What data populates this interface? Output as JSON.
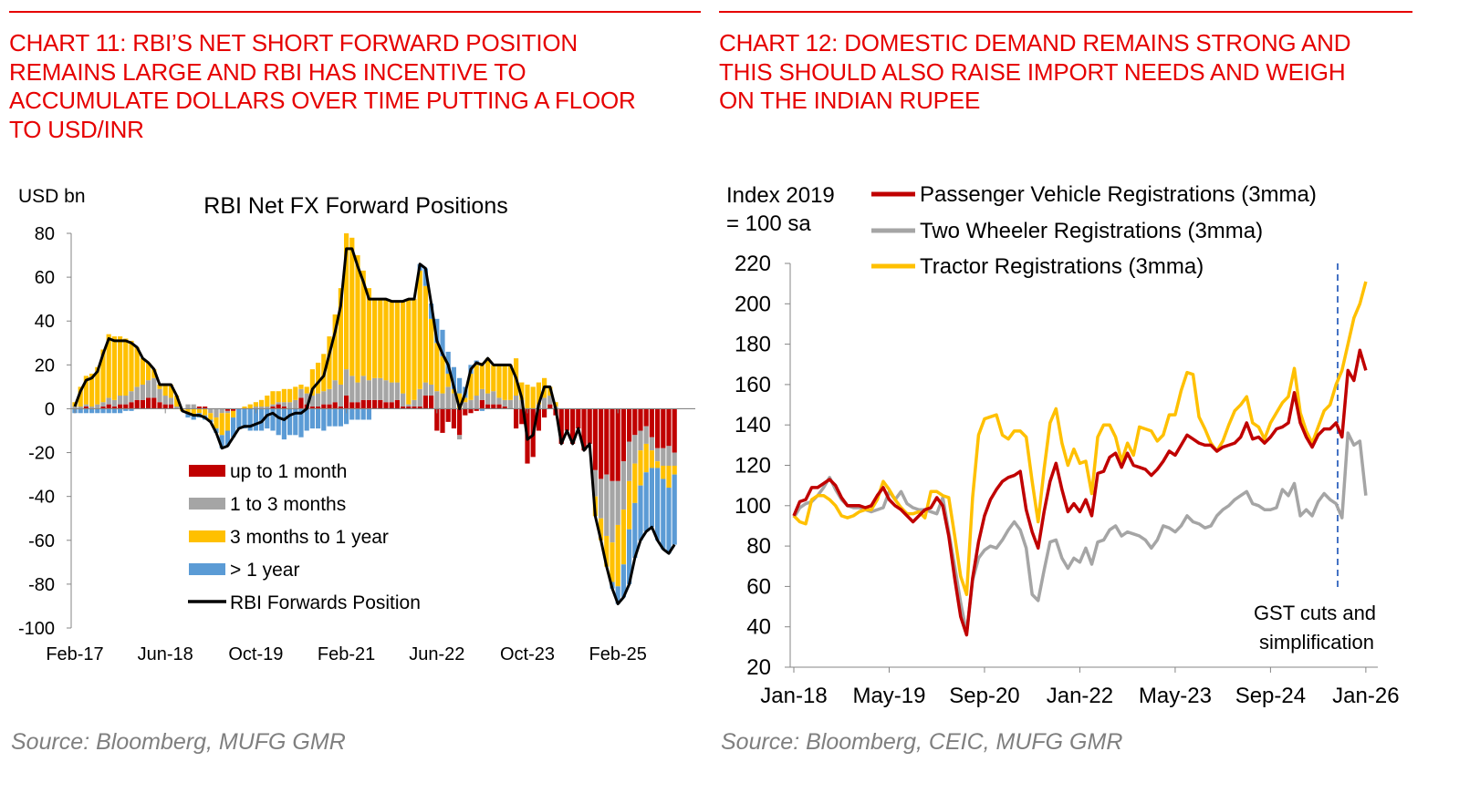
{
  "left": {
    "heading_lines": [
      "CHART 11: RBI’S NET SHORT FORWARD POSITION",
      "REMAINS LARGE AND RBI HAS INCENTIVE TO",
      "ACCUMULATE DOLLARS OVER TIME PUTTING A FLOOR",
      "TO USD/INR"
    ],
    "source": "Source: Bloomberg, MUFG GMR"
  },
  "right": {
    "heading_lines": [
      "CHART 12: DOMESTIC DEMAND REMAINS STRONG AND",
      "THIS SHOULD ALSO RAISE IMPORT NEEDS AND WEIGH",
      "ON THE INDIAN RUPEE"
    ],
    "source": "Source: Bloomberg, CEIC, MUFG GMR"
  },
  "chart_data": [
    {
      "type": "bar",
      "stacked": true,
      "title": "RBI Net FX Forward Positions",
      "ylabel": "USD bn",
      "ylim": [
        -100,
        80
      ],
      "yticks": [
        "80",
        "60",
        "40",
        "20",
        "0",
        "-20",
        "-40",
        "-60",
        "-80",
        "-100"
      ],
      "xtick_labels": [
        "Feb-17",
        "Jun-18",
        "Oct-19",
        "Feb-21",
        "Jun-22",
        "Oct-23",
        "Feb-25"
      ],
      "frequency": "monthly",
      "legend_position": "bottom-center",
      "grid": false,
      "series": [
        {
          "name": "up to 1 month",
          "color": "#c00000",
          "values": [
            0,
            0,
            1,
            0,
            0,
            1,
            2,
            1,
            2,
            2,
            3,
            4,
            4,
            5,
            5,
            3,
            2,
            2,
            0,
            0,
            0,
            0,
            1,
            1,
            0,
            0,
            0,
            -1,
            -1,
            0,
            0,
            0,
            0,
            0,
            0,
            1,
            2,
            1,
            0,
            0,
            5,
            2,
            1,
            1,
            2,
            2,
            3,
            1,
            6,
            3,
            3,
            4,
            4,
            4,
            4,
            3,
            3,
            4,
            1,
            1,
            1,
            1,
            6,
            6,
            -10,
            -11,
            -6,
            -9,
            -12,
            -3,
            -2,
            -1,
            4,
            2,
            2,
            2,
            1,
            0,
            -9,
            -7,
            -25,
            -22,
            -10,
            -4,
            2,
            -3,
            -16,
            -10,
            -16,
            -9,
            -19,
            -16,
            -28,
            -32,
            -30,
            -33,
            -33,
            -24,
            -15,
            -12,
            -10,
            -8,
            -13,
            -18,
            -18,
            -17,
            -20
          ]
        },
        {
          "name": "1 to 3 months",
          "color": "#a5a5a5",
          "values": [
            1,
            1,
            1,
            1,
            2,
            2,
            3,
            3,
            4,
            4,
            5,
            6,
            7,
            8,
            9,
            6,
            4,
            3,
            1,
            0,
            2,
            2,
            0,
            0,
            -2,
            -4,
            -2,
            -1,
            0,
            0,
            0,
            0,
            1,
            1,
            1,
            1,
            1,
            2,
            3,
            4,
            4,
            5,
            5,
            6,
            6,
            7,
            10,
            10,
            12,
            12,
            9,
            11,
            9,
            10,
            10,
            10,
            9,
            8,
            6,
            1,
            3,
            8,
            6,
            5,
            8,
            7,
            10,
            7,
            -2,
            3,
            4,
            6,
            5,
            5,
            6,
            3,
            3,
            4,
            6,
            4,
            0,
            0,
            2,
            5,
            4,
            1,
            0,
            0,
            0,
            0,
            0,
            0,
            -12,
            -18,
            -28,
            -28,
            -20,
            -22,
            -18,
            -13,
            -9,
            -8,
            -6,
            -6,
            -8,
            -9,
            -6
          ]
        },
        {
          "name": "3 months to 1 year",
          "color": "#ffc000",
          "values": [
            2,
            9,
            13,
            15,
            17,
            24,
            29,
            29,
            27,
            26,
            23,
            18,
            12,
            8,
            4,
            2,
            5,
            6,
            5,
            -1,
            -2,
            -3,
            -2,
            -3,
            -3,
            -5,
            -10,
            -8,
            -3,
            0,
            1,
            2,
            2,
            3,
            5,
            6,
            5,
            6,
            6,
            6,
            2,
            3,
            12,
            14,
            17,
            24,
            30,
            44,
            62,
            63,
            58,
            48,
            42,
            36,
            36,
            37,
            37,
            37,
            42,
            48,
            46,
            54,
            44,
            30,
            22,
            17,
            6,
            2,
            7,
            2,
            12,
            14,
            12,
            16,
            12,
            15,
            16,
            16,
            17,
            8,
            11,
            10,
            10,
            9,
            4,
            2,
            0,
            0,
            0,
            0,
            0,
            0,
            -9,
            -10,
            -14,
            -18,
            -28,
            -25,
            -22,
            -18,
            -16,
            -13,
            -8,
            -3,
            -6,
            -10,
            -4
          ]
        },
        {
          "name": "> 1 year",
          "color": "#5b9bd5",
          "values": [
            -2,
            -2,
            -2,
            -2,
            -2,
            -2,
            -2,
            -2,
            -2,
            -1,
            -1,
            0,
            0,
            0,
            0,
            0,
            0,
            0,
            0,
            0,
            -2,
            -2,
            -2,
            -2,
            -1,
            -2,
            -6,
            -7,
            -9,
            -9,
            -9,
            -10,
            -10,
            -10,
            -9,
            -10,
            -12,
            -14,
            -12,
            -12,
            -13,
            -10,
            -9,
            -9,
            -10,
            -8,
            -8,
            -8,
            -7,
            -5,
            -5,
            -5,
            -5,
            0,
            0,
            0,
            0,
            0,
            0,
            0,
            0,
            3,
            8,
            7,
            11,
            12,
            10,
            10,
            7,
            5,
            4,
            2,
            -1,
            0,
            0,
            0,
            0,
            0,
            0,
            0,
            0,
            0,
            0,
            0,
            0,
            0,
            0,
            0,
            0,
            0,
            0,
            0,
            0,
            0,
            0,
            -3,
            -8,
            -15,
            -25,
            -25,
            -25,
            -27,
            -27,
            -33,
            -32,
            -30,
            -32
          ]
        }
      ],
      "line": {
        "name": "RBI Forwards Position",
        "color": "#000000",
        "values": [
          1,
          8,
          13,
          14,
          17,
          25,
          32,
          31,
          31,
          31,
          30,
          28,
          23,
          21,
          18,
          11,
          11,
          11,
          6,
          -1,
          -2,
          -3,
          -3,
          -4,
          -6,
          -11,
          -18,
          -17,
          -13,
          -9,
          -8,
          -8,
          -7,
          -6,
          -3,
          -2,
          -4,
          -5,
          -3,
          -2,
          -2,
          0,
          9,
          12,
          15,
          25,
          35,
          47,
          73,
          73,
          65,
          58,
          50,
          50,
          50,
          50,
          49,
          49,
          49,
          50,
          50,
          66,
          64,
          48,
          31,
          25,
          20,
          10,
          0,
          7,
          18,
          21,
          20,
          23,
          20,
          20,
          20,
          20,
          14,
          5,
          -14,
          -12,
          2,
          10,
          10,
          0,
          -16,
          -10,
          -16,
          -9,
          -19,
          -16,
          -49,
          -60,
          -72,
          -82,
          -89,
          -86,
          -80,
          -68,
          -60,
          -56,
          -54,
          -60,
          -64,
          -66,
          -62
        ]
      }
    },
    {
      "type": "line",
      "ylabel_lines": [
        "Index 2019",
        "= 100 sa"
      ],
      "ylim": [
        20,
        220
      ],
      "yticks": [
        "220",
        "200",
        "180",
        "160",
        "140",
        "120",
        "100",
        "80",
        "60",
        "40",
        "20"
      ],
      "xtick_labels": [
        "Jan-18",
        "May-19",
        "Sep-20",
        "Jan-22",
        "May-23",
        "Sep-24",
        "Jan-26"
      ],
      "frequency": "monthly",
      "legend_position": "top",
      "grid": false,
      "series": [
        {
          "name": "Passenger Vehicle Registrations (3mma)",
          "color": "#c00000",
          "values": [
            95,
            102,
            103,
            109,
            109,
            111,
            113,
            110,
            104,
            100,
            100,
            100,
            99,
            100,
            105,
            109,
            103,
            100,
            98,
            95,
            92,
            95,
            98,
            99,
            104,
            100,
            85,
            64,
            45,
            36,
            64,
            82,
            95,
            103,
            108,
            112,
            114,
            115,
            117,
            98,
            87,
            79,
            97,
            112,
            121,
            108,
            97,
            101,
            97,
            103,
            95,
            116,
            117,
            124,
            126,
            119,
            126,
            120,
            119,
            118,
            115,
            118,
            122,
            127,
            125,
            130,
            135,
            133,
            131,
            130,
            130,
            127,
            129,
            130,
            131,
            134,
            141,
            133,
            134,
            131,
            134,
            138,
            139,
            141,
            156,
            141,
            134,
            129,
            135,
            138,
            138,
            141,
            134,
            167,
            162,
            177,
            167
          ]
        },
        {
          "name": "Two Wheeler Registrations (3mma)",
          "color": "#a5a5a5",
          "values": [
            94,
            99,
            101,
            102,
            105,
            109,
            114,
            108,
            103,
            100,
            99,
            99,
            98,
            97,
            98,
            99,
            107,
            103,
            107,
            101,
            99,
            98,
            98,
            97,
            96,
            104,
            87,
            70,
            52,
            37,
            63,
            74,
            78,
            80,
            79,
            83,
            88,
            92,
            88,
            79,
            56,
            53,
            68,
            82,
            83,
            74,
            69,
            74,
            72,
            79,
            71,
            82,
            83,
            88,
            90,
            85,
            87,
            86,
            85,
            83,
            79,
            83,
            90,
            89,
            87,
            90,
            95,
            92,
            91,
            89,
            90,
            95,
            98,
            100,
            103,
            105,
            107,
            101,
            100,
            98,
            98,
            99,
            108,
            105,
            111,
            95,
            98,
            95,
            102,
            106,
            103,
            101,
            94,
            136,
            130,
            132,
            105
          ]
        },
        {
          "name": "Tractor Registrations (3mma)",
          "color": "#ffc000",
          "values": [
            95,
            92,
            91,
            103,
            105,
            105,
            103,
            100,
            95,
            94,
            95,
            97,
            98,
            98,
            103,
            112,
            108,
            103,
            99,
            96,
            96,
            97,
            94,
            107,
            107,
            105,
            104,
            85,
            65,
            56,
            104,
            135,
            143,
            144,
            145,
            135,
            133,
            137,
            137,
            134,
            112,
            92,
            118,
            141,
            148,
            131,
            120,
            128,
            121,
            122,
            106,
            134,
            140,
            140,
            134,
            122,
            131,
            125,
            139,
            138,
            137,
            132,
            135,
            145,
            145,
            157,
            166,
            165,
            144,
            138,
            131,
            127,
            132,
            140,
            147,
            150,
            154,
            141,
            139,
            133,
            141,
            146,
            151,
            154,
            168,
            146,
            137,
            131,
            139,
            147,
            150,
            160,
            167,
            180,
            193,
            200,
            211
          ]
        }
      ],
      "annotation": {
        "lines": [
          "GST cuts and",
          "simplification"
        ],
        "marker_at": "Sep-25",
        "marker_color": "#4472c4"
      }
    }
  ]
}
